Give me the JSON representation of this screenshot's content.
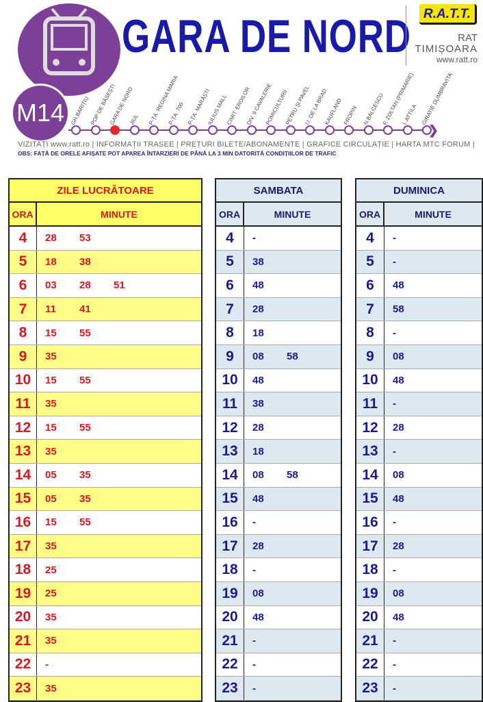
{
  "header": {
    "title": "GARA DE NORD",
    "route": "M14",
    "logo_text": "R.A.T.T.",
    "org_line1": "RAT",
    "org_line2": "TIMIȘOARA",
    "website": "www.ratt.ro",
    "stops": [
      "GH.BARIȚIU",
      "POP DE BĂSEȘTI",
      "GARA DE NORD",
      "JIUL",
      "P-ȚA. REGINA MARIA",
      "P-ȚA. 700",
      "P-ȚA. MARĂȘTI",
      "IULIUS MALL",
      "CIMIT. EROILOR",
      "DIV. 9 CAVALERIE",
      "POMICULTURII",
      "PETRU ȘI PAVEL",
      "I.I. DE LA BRAD",
      "KAUFLAND",
      "FROPIN",
      "N.BALCESCU",
      "F. ZOLTAN (PRIMARIE)",
      "I. ATTILA",
      "GIRATIE DUMBRAVITA"
    ],
    "current_stop": "GARA DE NORD",
    "links": "VIZITAȚI www.ratt.ro | INFORMAȚII TRASEE | PREȚURI BILETE/ABONAMENTE | GRAFICE CIRCULAȚIE | HARTA MTC   FORUM |",
    "notice": "OBS: FAȚĂ DE ORELE AFIȘATE POT APAREA ÎNTARZIERI DE PÂNĂ LA 3 MIN DATORITĂ CONDIȚIILOR DE TRAFIC"
  },
  "colors": {
    "purple": "#7d3f98",
    "weekday_text": "#e0141e",
    "weekend_text": "#1a1a8c",
    "weekday_fill": "#ffff88",
    "weekend_fill": "#dce9f1"
  },
  "tables": [
    {
      "title": "ZILE LUCRĂTOARE",
      "ora": "ORA",
      "minute": "MINUTE",
      "rows": [
        {
          "h": "4",
          "m": [
            "28",
            "53"
          ]
        },
        {
          "h": "5",
          "m": [
            "18",
            "38"
          ]
        },
        {
          "h": "6",
          "m": [
            "03",
            "28",
            "51"
          ]
        },
        {
          "h": "7",
          "m": [
            "11",
            "41"
          ]
        },
        {
          "h": "8",
          "m": [
            "15",
            "55"
          ]
        },
        {
          "h": "9",
          "m": [
            "35"
          ]
        },
        {
          "h": "10",
          "m": [
            "15",
            "55"
          ]
        },
        {
          "h": "11",
          "m": [
            "35"
          ]
        },
        {
          "h": "12",
          "m": [
            "15",
            "55"
          ]
        },
        {
          "h": "13",
          "m": [
            "35"
          ]
        },
        {
          "h": "14",
          "m": [
            "05",
            "35"
          ]
        },
        {
          "h": "15",
          "m": [
            "05",
            "35"
          ]
        },
        {
          "h": "16",
          "m": [
            "15",
            "55"
          ]
        },
        {
          "h": "17",
          "m": [
            "35"
          ]
        },
        {
          "h": "18",
          "m": [
            "25"
          ]
        },
        {
          "h": "19",
          "m": [
            "25"
          ]
        },
        {
          "h": "20",
          "m": [
            "35"
          ]
        },
        {
          "h": "21",
          "m": [
            "35"
          ]
        },
        {
          "h": "22",
          "m": [
            "-"
          ]
        },
        {
          "h": "23",
          "m": [
            "35"
          ]
        }
      ]
    },
    {
      "title": "SAMBATA",
      "ora": "ORA",
      "minute": "MINUTE",
      "rows": [
        {
          "h": "4",
          "m": [
            "-"
          ]
        },
        {
          "h": "5",
          "m": [
            "38"
          ]
        },
        {
          "h": "6",
          "m": [
            "48"
          ]
        },
        {
          "h": "7",
          "m": [
            "28"
          ]
        },
        {
          "h": "8",
          "m": [
            "18"
          ]
        },
        {
          "h": "9",
          "m": [
            "08",
            "58"
          ]
        },
        {
          "h": "10",
          "m": [
            "48"
          ]
        },
        {
          "h": "11",
          "m": [
            "38"
          ]
        },
        {
          "h": "12",
          "m": [
            "28"
          ]
        },
        {
          "h": "13",
          "m": [
            "18"
          ]
        },
        {
          "h": "14",
          "m": [
            "08",
            "58"
          ]
        },
        {
          "h": "15",
          "m": [
            "48"
          ]
        },
        {
          "h": "16",
          "m": [
            "-"
          ]
        },
        {
          "h": "17",
          "m": [
            "28"
          ]
        },
        {
          "h": "18",
          "m": [
            "-"
          ]
        },
        {
          "h": "19",
          "m": [
            "08"
          ]
        },
        {
          "h": "20",
          "m": [
            "48"
          ]
        },
        {
          "h": "21",
          "m": [
            "-"
          ]
        },
        {
          "h": "22",
          "m": [
            "-"
          ]
        },
        {
          "h": "23",
          "m": [
            "-"
          ]
        }
      ]
    },
    {
      "title": "DUMINICA",
      "ora": "ORA",
      "minute": "MINUTE",
      "rows": [
        {
          "h": "4",
          "m": [
            "-"
          ]
        },
        {
          "h": "5",
          "m": [
            "-"
          ]
        },
        {
          "h": "6",
          "m": [
            "48"
          ]
        },
        {
          "h": "7",
          "m": [
            "58"
          ]
        },
        {
          "h": "8",
          "m": [
            "-"
          ]
        },
        {
          "h": "9",
          "m": [
            "08"
          ]
        },
        {
          "h": "10",
          "m": [
            "48"
          ]
        },
        {
          "h": "11",
          "m": [
            "-"
          ]
        },
        {
          "h": "12",
          "m": [
            "28"
          ]
        },
        {
          "h": "13",
          "m": [
            "-"
          ]
        },
        {
          "h": "14",
          "m": [
            "08"
          ]
        },
        {
          "h": "15",
          "m": [
            "48"
          ]
        },
        {
          "h": "16",
          "m": [
            "-"
          ]
        },
        {
          "h": "17",
          "m": [
            "28"
          ]
        },
        {
          "h": "18",
          "m": [
            "-"
          ]
        },
        {
          "h": "19",
          "m": [
            "08"
          ]
        },
        {
          "h": "20",
          "m": [
            "48"
          ]
        },
        {
          "h": "21",
          "m": [
            "-"
          ]
        },
        {
          "h": "22",
          "m": [
            "-"
          ]
        },
        {
          "h": "23",
          "m": [
            "-"
          ]
        }
      ]
    }
  ]
}
